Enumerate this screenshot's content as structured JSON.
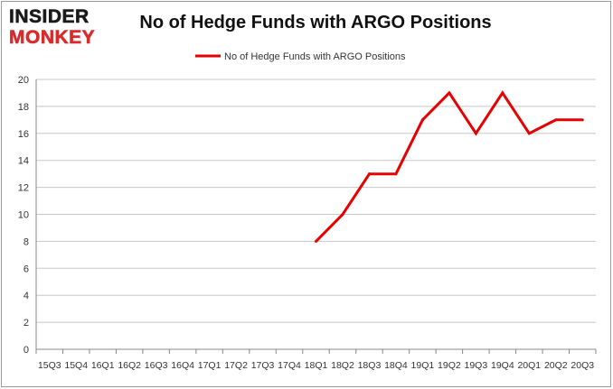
{
  "logo": {
    "line1": "INSIDER",
    "line2": "MONKEY"
  },
  "chart_data": {
    "type": "line",
    "title": "No of Hedge Funds with ARGO Positions",
    "xlabel": "",
    "ylabel": "",
    "categories": [
      "15Q3",
      "15Q4",
      "16Q1",
      "16Q2",
      "16Q3",
      "16Q4",
      "17Q1",
      "17Q2",
      "17Q3",
      "17Q4",
      "18Q1",
      "18Q2",
      "18Q3",
      "18Q4",
      "19Q1",
      "19Q2",
      "19Q3",
      "19Q4",
      "20Q1",
      "20Q2",
      "20Q3"
    ],
    "ylim": [
      0,
      20
    ],
    "yticks": [
      0,
      2,
      4,
      6,
      8,
      10,
      12,
      14,
      16,
      18,
      20
    ],
    "grid": true,
    "legend": "top-center",
    "series": [
      {
        "name": "No of Hedge Funds with ARGO Positions",
        "color": "#e60000",
        "values": [
          null,
          null,
          null,
          null,
          null,
          null,
          null,
          null,
          null,
          null,
          8,
          10,
          13,
          13,
          17,
          19,
          16,
          19,
          16,
          17,
          17
        ]
      }
    ]
  }
}
